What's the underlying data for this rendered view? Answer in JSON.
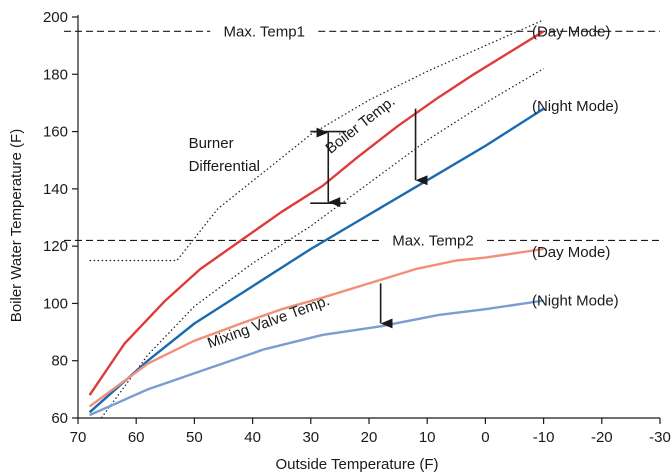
{
  "chart_data": {
    "type": "line",
    "xlabel": "Outside Temperature (F)",
    "ylabel": "Boiler Water Temperature (F)",
    "xlim": [
      70,
      -30
    ],
    "ylim": [
      60,
      200
    ],
    "x_reversed": true,
    "xticks": [
      70,
      60,
      50,
      40,
      30,
      20,
      10,
      0,
      -10,
      -20,
      -30
    ],
    "xtick_labels": [
      "70",
      "60",
      "50",
      "40",
      "30",
      "20",
      "10",
      "0",
      "-10",
      "-20",
      "-30"
    ],
    "yticks": [
      60,
      80,
      100,
      120,
      140,
      160,
      180,
      200
    ],
    "ytick_labels": [
      "60",
      "80",
      "100",
      "120",
      "140",
      "160",
      "180",
      "200"
    ],
    "grid": false,
    "colors": {
      "boiler_day": "#e03a3a",
      "boiler_night": "#1a6ab0",
      "mixing_day": "#f0907a",
      "mixing_night": "#7a9ed0",
      "reference": "#1a1a1a"
    },
    "series": [
      {
        "key": "boiler_day",
        "x": [
          68,
          62,
          55,
          49,
          42,
          35,
          28,
          22,
          15,
          8,
          2,
          -10
        ],
        "y": [
          68,
          86,
          101,
          112,
          122,
          132,
          141,
          151,
          162,
          172,
          180,
          195
        ]
      },
      {
        "key": "boiler_night",
        "x": [
          68,
          58,
          50,
          40,
          30,
          20,
          10,
          0,
          -10
        ],
        "y": [
          62,
          80,
          93,
          106,
          119,
          131,
          143,
          155,
          168
        ]
      },
      {
        "key": "mixing_day",
        "x": [
          68,
          58,
          50,
          42,
          35,
          28,
          20,
          12,
          5,
          0,
          -10
        ],
        "y": [
          64,
          79,
          87,
          93,
          98,
          102,
          107,
          112,
          115,
          116,
          119
        ]
      },
      {
        "key": "mixing_night",
        "x": [
          68,
          58,
          48,
          38,
          28,
          18,
          8,
          0,
          -10
        ],
        "y": [
          61,
          70,
          77,
          84,
          89,
          92,
          96,
          98,
          101
        ]
      }
    ],
    "reference_lines": [
      {
        "label": "Max. Temp1",
        "y": 195,
        "label_x": 38
      },
      {
        "label": "Max. Temp2",
        "y": 122,
        "label_x": 9
      }
    ],
    "differential_band": [
      {
        "x": [
          68,
          53,
          46,
          38,
          30,
          20,
          10,
          0,
          -10
        ],
        "y": [
          115,
          115,
          133,
          146,
          159,
          171,
          181,
          190,
          199
        ]
      },
      {
        "x": [
          66,
          58,
          50,
          40,
          30,
          20,
          10,
          0,
          -10
        ],
        "y": [
          60,
          82,
          99,
          114,
          127,
          142,
          157,
          170,
          182
        ]
      }
    ],
    "annotations": [
      {
        "id": "day-mode-1",
        "text": "(Day Mode)",
        "x": -8,
        "y": 195
      },
      {
        "id": "night-mode-1",
        "text": "(Night Mode)",
        "x": -8,
        "y": 169
      },
      {
        "id": "day-mode-2",
        "text": "(Day Mode)",
        "x": -8,
        "y": 118
      },
      {
        "id": "night-mode-2",
        "text": "(Night Mode)",
        "x": -8,
        "y": 101
      },
      {
        "id": "burner-label-1",
        "text": "Burner",
        "x": 51,
        "y": 156
      },
      {
        "id": "burner-label-2",
        "text": "Differential",
        "x": 51,
        "y": 148
      },
      {
        "id": "boiler-temp-label",
        "text": "Boiler Temp.",
        "x": 21,
        "y": 161,
        "rotate": -38
      },
      {
        "id": "mixing-valve-label",
        "text": "Mixing Valve Temp.",
        "x": 37,
        "y": 92,
        "rotate": -20
      }
    ],
    "arrows": [
      {
        "kind": "double",
        "x": 27,
        "y_from": 160,
        "y_to": 135
      },
      {
        "kind": "down",
        "x": 12,
        "y_from": 168,
        "y_to": 143
      },
      {
        "kind": "down",
        "x": 18,
        "y_from": 107,
        "y_to": 93
      }
    ]
  }
}
